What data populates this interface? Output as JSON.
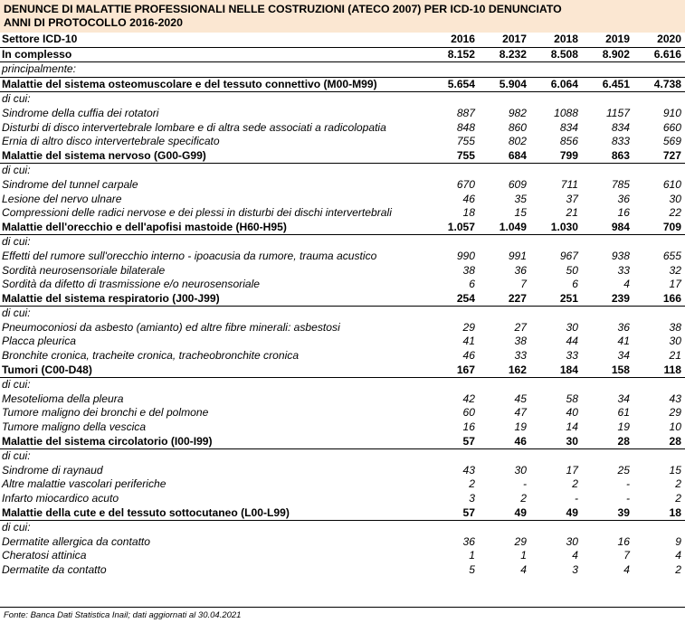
{
  "title": {
    "line1": "DENUNCE DI MALATTIE PROFESSIONALI NELLE COSTRUZIONI (ATECO 2007) PER ICD-10 DENUNCIATO",
    "line2": "ANNI DI PROTOCOLLO 2016-2020"
  },
  "header": {
    "label": "Settore ICD-10",
    "years": [
      "2016",
      "2017",
      "2018",
      "2019",
      "2020"
    ]
  },
  "total": {
    "label": "In complesso",
    "values": [
      "8.152",
      "8.232",
      "8.508",
      "8.902",
      "6.616"
    ]
  },
  "intro": "principalmente:",
  "dicui": "di cui:",
  "groups": [
    {
      "label": "Malattie del sistema osteomuscolare e del tessuto connettivo (M00-M99)",
      "values": [
        "5.654",
        "5.904",
        "6.064",
        "6.451",
        "4.738"
      ],
      "items": [
        {
          "label": "Sindrome della cuffia dei rotatori",
          "values": [
            "887",
            "982",
            "1088",
            "1157",
            "910"
          ]
        },
        {
          "label": "Disturbi di disco intervertebrale lombare e di altra sede associati a radicolopatia",
          "values": [
            "848",
            "860",
            "834",
            "834",
            "660"
          ]
        },
        {
          "label": "Ernia di altro disco intervertebrale specificato",
          "values": [
            "755",
            "802",
            "856",
            "833",
            "569"
          ]
        }
      ]
    },
    {
      "label": "Malattie del sistema nervoso (G00-G99)",
      "values": [
        "755",
        "684",
        "799",
        "863",
        "727"
      ],
      "items": [
        {
          "label": "Sindrome del tunnel carpale",
          "values": [
            "670",
            "609",
            "711",
            "785",
            "610"
          ]
        },
        {
          "label": "Lesione del nervo ulnare",
          "values": [
            "46",
            "35",
            "37",
            "36",
            "30"
          ]
        },
        {
          "label": "Compressioni delle radici nervose e dei plessi in disturbi dei dischi intervertebrali",
          "values": [
            "18",
            "15",
            "21",
            "16",
            "22"
          ]
        }
      ]
    },
    {
      "label": "Malattie dell'orecchio e dell'apofisi mastoide (H60-H95)",
      "values": [
        "1.057",
        "1.049",
        "1.030",
        "984",
        "709"
      ],
      "items": [
        {
          "label": "Effetti del rumore sull'orecchio interno - ipoacusia da rumore, trauma acustico",
          "values": [
            "990",
            "991",
            "967",
            "938",
            "655"
          ]
        },
        {
          "label": "Sordità neurosensoriale bilaterale",
          "values": [
            "38",
            "36",
            "50",
            "33",
            "32"
          ]
        },
        {
          "label": "Sordità da difetto di trasmissione e/o neurosensoriale",
          "values": [
            "6",
            "7",
            "6",
            "4",
            "17"
          ]
        }
      ]
    },
    {
      "label": "Malattie del sistema respiratorio (J00-J99)",
      "values": [
        "254",
        "227",
        "251",
        "239",
        "166"
      ],
      "items": [
        {
          "label": "Pneumoconiosi da asbesto (amianto) ed altre fibre minerali: asbestosi",
          "values": [
            "29",
            "27",
            "30",
            "36",
            "38"
          ]
        },
        {
          "label": "Placca pleurica",
          "values": [
            "41",
            "38",
            "44",
            "41",
            "30"
          ]
        },
        {
          "label": "Bronchite cronica, tracheite cronica, tracheobronchite cronica",
          "values": [
            "46",
            "33",
            "33",
            "34",
            "21"
          ]
        }
      ]
    },
    {
      "label": "Tumori (C00-D48)",
      "values": [
        "167",
        "162",
        "184",
        "158",
        "118"
      ],
      "items": [
        {
          "label": "Mesotelioma della pleura",
          "values": [
            "42",
            "45",
            "58",
            "34",
            "43"
          ]
        },
        {
          "label": "Tumore maligno dei bronchi e del polmone",
          "values": [
            "60",
            "47",
            "40",
            "61",
            "29"
          ]
        },
        {
          "label": "Tumore maligno della vescica",
          "values": [
            "16",
            "19",
            "14",
            "19",
            "10"
          ]
        }
      ]
    },
    {
      "label": "Malattie del sistema circolatorio (I00-I99)",
      "values": [
        "57",
        "46",
        "30",
        "28",
        "28"
      ],
      "items": [
        {
          "label": "Sindrome di raynaud",
          "values": [
            "43",
            "30",
            "17",
            "25",
            "15"
          ]
        },
        {
          "label": "Altre malattie vascolari periferiche",
          "values": [
            "2",
            "-",
            "2",
            "-",
            "2"
          ]
        },
        {
          "label": "Infarto miocardico acuto",
          "values": [
            "3",
            "2",
            "-",
            "-",
            "2"
          ]
        }
      ]
    },
    {
      "label": "Malattie della cute e del tessuto sottocutaneo (L00-L99)",
      "values": [
        "57",
        "49",
        "49",
        "39",
        "18"
      ],
      "items": [
        {
          "label": "Dermatite allergica da contatto",
          "values": [
            "36",
            "29",
            "30",
            "16",
            "9"
          ]
        },
        {
          "label": "Cheratosi attinica",
          "values": [
            "1",
            "1",
            "4",
            "7",
            "4"
          ]
        },
        {
          "label": "Dermatite da contatto",
          "values": [
            "5",
            "4",
            "3",
            "4",
            "2"
          ]
        }
      ]
    }
  ],
  "source": "Fonte: Banca Dati Statistica Inail; dati aggiornati al 30.04.2021"
}
